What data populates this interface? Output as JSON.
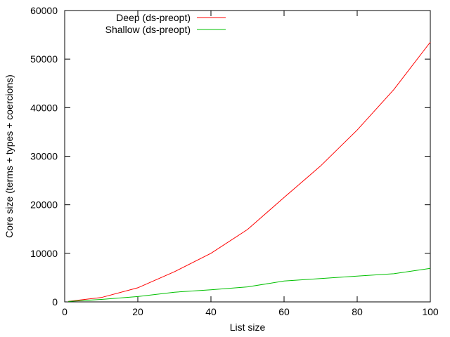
{
  "chart_data": {
    "type": "line",
    "title": "",
    "xlabel": "List size",
    "ylabel": "Core size (terms + types + coercions)",
    "xlim": [
      0,
      100
    ],
    "ylim": [
      0,
      60000
    ],
    "xticks": [
      0,
      20,
      40,
      60,
      80,
      100
    ],
    "yticks": [
      0,
      10000,
      20000,
      30000,
      40000,
      50000,
      60000
    ],
    "grid": false,
    "legend_position": "top-left",
    "series": [
      {
        "name": "Deep (ds-preopt)",
        "color": "#ff0000",
        "x": [
          1,
          10,
          20,
          30,
          40,
          50,
          60,
          70,
          80,
          90,
          100
        ],
        "y": [
          100,
          900,
          2900,
          6200,
          10000,
          14900,
          21500,
          28000,
          35400,
          43700,
          53500
        ]
      },
      {
        "name": "Shallow (ds-preopt)",
        "color": "#00c000",
        "x": [
          1,
          10,
          20,
          30,
          40,
          50,
          60,
          70,
          80,
          90,
          100
        ],
        "y": [
          80,
          500,
          1100,
          2000,
          2500,
          3100,
          4300,
          4800,
          5300,
          5800,
          6900
        ]
      }
    ]
  }
}
